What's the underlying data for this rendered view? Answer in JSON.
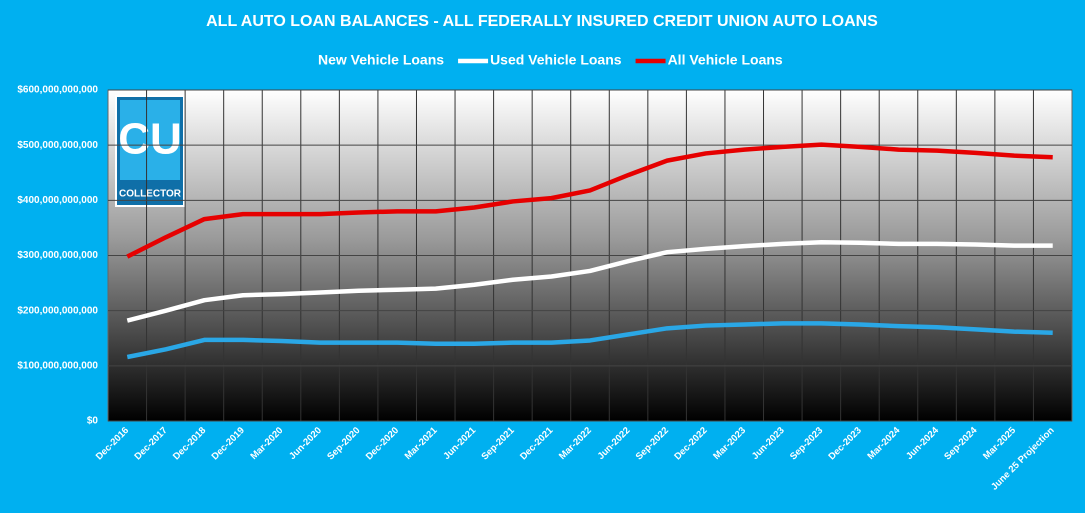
{
  "chart_data": {
    "type": "line",
    "title": "ALL AUTO LOAN BALANCES - ALL FEDERALLY INSURED CREDIT UNION AUTO LOANS",
    "categories": [
      "Dec-2016",
      "Dec-2017",
      "Dec-2018",
      "Dec-2019",
      "Mar-2020",
      "Jun-2020",
      "Sep-2020",
      "Dec-2020",
      "Mar-2021",
      "Jun-2021",
      "Sep-2021",
      "Dec-2021",
      "Mar-2022",
      "Jun-2022",
      "Sep-2022",
      "Dec-2022",
      "Mar-2023",
      "Jun-2023",
      "Sep-2023",
      "Dec-2023",
      "Mar-2024",
      "Jun-2024",
      "Sep-2024",
      "Mar-2025",
      "June 25 Projection"
    ],
    "series": [
      {
        "name": "New Vehicle Loans",
        "color": "#2aa7e6",
        "values": [
          116000000000,
          130000000000,
          147000000000,
          147000000000,
          145000000000,
          142000000000,
          142000000000,
          142000000000,
          140000000000,
          140000000000,
          142000000000,
          142000000000,
          146000000000,
          157000000000,
          168000000000,
          173000000000,
          175000000000,
          177000000000,
          177000000000,
          175000000000,
          172000000000,
          170000000000,
          166000000000,
          162000000000,
          160000000000
        ]
      },
      {
        "name": "Used Vehicle Loans",
        "color": "#ffffff",
        "values": [
          182000000000,
          200000000000,
          219000000000,
          228000000000,
          230000000000,
          233000000000,
          236000000000,
          238000000000,
          240000000000,
          247000000000,
          256000000000,
          262000000000,
          272000000000,
          290000000000,
          306000000000,
          312000000000,
          317000000000,
          321000000000,
          324000000000,
          323000000000,
          321000000000,
          321000000000,
          320000000000,
          318000000000,
          318000000000
        ]
      },
      {
        "name": "All Vehicle Loans",
        "color": "#e60000",
        "values": [
          298000000000,
          333000000000,
          366000000000,
          375000000000,
          375000000000,
          375000000000,
          378000000000,
          380000000000,
          380000000000,
          387000000000,
          398000000000,
          404000000000,
          418000000000,
          446000000000,
          472000000000,
          485000000000,
          492000000000,
          497000000000,
          501000000000,
          497000000000,
          492000000000,
          490000000000,
          486000000000,
          481000000000,
          478000000000
        ]
      }
    ],
    "ylim": [
      0,
      600000000000
    ],
    "yticks": [
      {
        "value": 0,
        "label": "$0"
      },
      {
        "value": 100000000000,
        "label": "$100,000,000,000"
      },
      {
        "value": 200000000000,
        "label": "$200,000,000,000"
      },
      {
        "value": 300000000000,
        "label": "$300,000,000,000"
      },
      {
        "value": 400000000000,
        "label": "$400,000,000,000"
      },
      {
        "value": 500000000000,
        "label": "$500,000,000,000"
      },
      {
        "value": 600000000000,
        "label": "$600,000,000,000"
      }
    ],
    "grid": true
  },
  "logo": {
    "text": "CU",
    "subtext": "COLLECTOR"
  }
}
